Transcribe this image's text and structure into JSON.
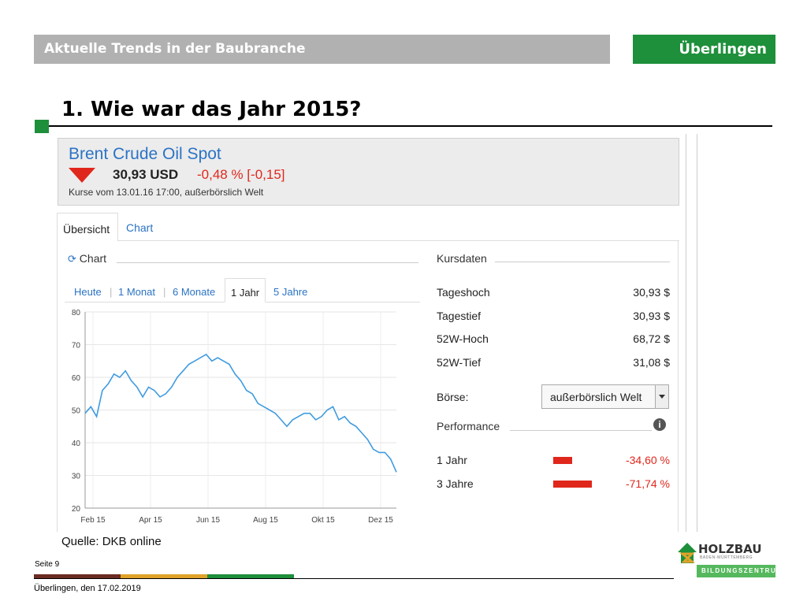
{
  "header": {
    "title": "Aktuelle Trends in der Baubranche",
    "location": "Überlingen"
  },
  "slide_title": "1. Wie war das Jahr 2015?",
  "quote": {
    "name": "Brent Crude Oil Spot",
    "price": "30,93 USD",
    "change": "-0,48 % [-0,15]",
    "timestamp": "Kurse vom 13.01.16 17:00, außerbörslich Welt"
  },
  "tabs": [
    {
      "label": "Übersicht"
    },
    {
      "label": "Chart"
    }
  ],
  "chart_section_label": "Chart",
  "ranges": {
    "heute": "Heute",
    "monat": "1 Monat",
    "monate6": "6 Monate",
    "jahr": "1 Jahr",
    "jahre5": "5 Jahre",
    "sep": "|"
  },
  "chart_data": {
    "type": "line",
    "ylim": [
      20,
      80
    ],
    "yticks": [
      "80",
      "70",
      "60",
      "50",
      "40",
      "30",
      "20"
    ],
    "xticks": [
      "Feb 15",
      "Apr 15",
      "Jun 15",
      "Aug 15",
      "Okt 15",
      "Dez 15"
    ],
    "series": [
      {
        "values": [
          49,
          51,
          48,
          56,
          58,
          61,
          60,
          62,
          59,
          57,
          54,
          57,
          56,
          54,
          55,
          57,
          60,
          62,
          64,
          65,
          66,
          67,
          65,
          66,
          65,
          64,
          61,
          59,
          56,
          55,
          52,
          51,
          50,
          49,
          47,
          45,
          47,
          48,
          49,
          49,
          47,
          48,
          50,
          51,
          47,
          48,
          46,
          45,
          43,
          41,
          38,
          37,
          37,
          35,
          31
        ]
      }
    ],
    "color": "#3f9be0"
  },
  "kursdaten": {
    "title": "Kursdaten",
    "rows": [
      {
        "label": "Tageshoch",
        "value": "30,93 $"
      },
      {
        "label": "Tagestief",
        "value": "30,93 $"
      },
      {
        "label": "52W-Hoch",
        "value": "68,72 $"
      },
      {
        "label": "52W-Tief",
        "value": "31,08 $"
      }
    ],
    "boerse_label": "Börse:",
    "boerse_value": "außerbörslich Welt"
  },
  "performance": {
    "title": "Performance",
    "rows": [
      {
        "label": "1 Jahr",
        "value": "-34,60 %",
        "bar": 0.346
      },
      {
        "label": "3 Jahre",
        "value": "-71,74 %",
        "bar": 0.7174
      }
    ]
  },
  "source": "Quelle: DKB online",
  "footer": {
    "page": "Seite 9",
    "date": "Überlingen, den 17.02.2019"
  },
  "logo": {
    "name": "HOLZBAU",
    "sub": "BADEN-WÜRTTEMBERG",
    "bar": "BILDUNGSZENTRUM"
  },
  "colors": {
    "green": "#1e8f3a",
    "red": "#e0271c",
    "blue": "#2b73c5"
  }
}
